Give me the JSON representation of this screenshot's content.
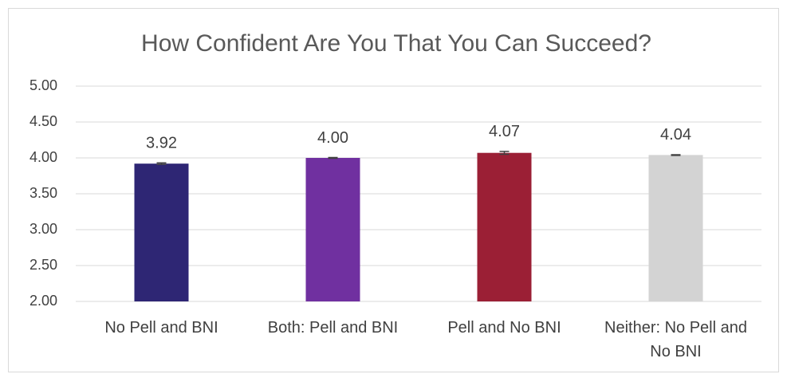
{
  "chart_data": {
    "type": "bar",
    "title": "How Confident Are You That You Can Succeed?",
    "categories": [
      "No Pell and BNI",
      "Both: Pell and BNI",
      "Pell and No BNI",
      "Neither: No Pell and No BNI"
    ],
    "values": [
      3.92,
      4.0,
      4.07,
      4.04
    ],
    "value_labels": [
      "3.92",
      "4.00",
      "4.07",
      "4.04"
    ],
    "errors": [
      0.01,
      0.005,
      0.02,
      0.005
    ],
    "colors": [
      "#2e2674",
      "#7030a0",
      "#9b1f35",
      "#d3d3d3"
    ],
    "ylim": [
      2,
      5
    ],
    "yticks": [
      {
        "value": 2,
        "label": "2.00"
      },
      {
        "value": 2.5,
        "label": "2.50"
      },
      {
        "value": 3,
        "label": "3.00"
      },
      {
        "value": 3.5,
        "label": "3.50"
      },
      {
        "value": 4,
        "label": "4.00"
      },
      {
        "value": 4.5,
        "label": "4.50"
      },
      {
        "value": 5,
        "label": "5.00"
      }
    ],
    "grid": true
  }
}
